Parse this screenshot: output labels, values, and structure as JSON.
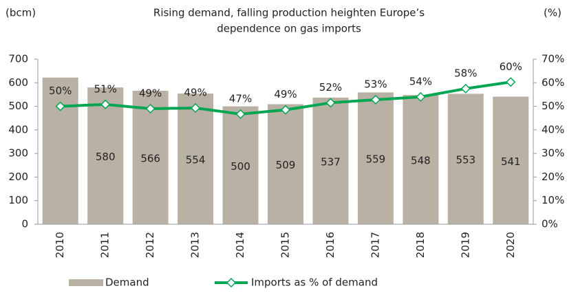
{
  "chart_data": {
    "type": "bar_line",
    "title": [
      "Rising demand, falling production heighten Europe’s",
      "dependence on gas imports"
    ],
    "y_label": "(bcm)",
    "y2_label": "(%)",
    "categories": [
      "2010",
      "2011",
      "2012",
      "2013",
      "2014",
      "2015",
      "2016",
      "2017",
      "2018",
      "2019",
      "2020"
    ],
    "series": [
      {
        "name": "Demand",
        "type": "bar",
        "color": "#bab1a5",
        "values": [
          622,
          580,
          566,
          554,
          500,
          509,
          537,
          559,
          548,
          553,
          541
        ],
        "value_labels": [
          null,
          "580",
          "566",
          "554",
          "500",
          "509",
          "537",
          "559",
          "548",
          "553",
          "541"
        ]
      },
      {
        "name": "Imports as % of demand",
        "type": "line",
        "axis": "y2",
        "color": "#00a651",
        "values": [
          50,
          50.8,
          49,
          49.3,
          46.7,
          48.5,
          51.5,
          52.8,
          54,
          57.5,
          60.3
        ],
        "value_labels": [
          "50%",
          "51%",
          "49%",
          "49%",
          "47%",
          "49%",
          "52%",
          "53%",
          "54%",
          "58%",
          "60%"
        ]
      }
    ],
    "ylim": [
      0,
      700
    ],
    "yticks": [
      0,
      100,
      200,
      300,
      400,
      500,
      600,
      700
    ],
    "y2lim": [
      0,
      70
    ],
    "y2ticks": [
      {
        "value": 0,
        "label": "0%"
      },
      {
        "value": 10,
        "label": "10%"
      },
      {
        "value": 20,
        "label": "20%"
      },
      {
        "value": 30,
        "label": "30%"
      },
      {
        "value": 40,
        "label": "40%"
      },
      {
        "value": 50,
        "label": "50%"
      },
      {
        "value": 60,
        "label": "60%"
      },
      {
        "value": 70,
        "label": "70%"
      }
    ],
    "grid": false
  }
}
